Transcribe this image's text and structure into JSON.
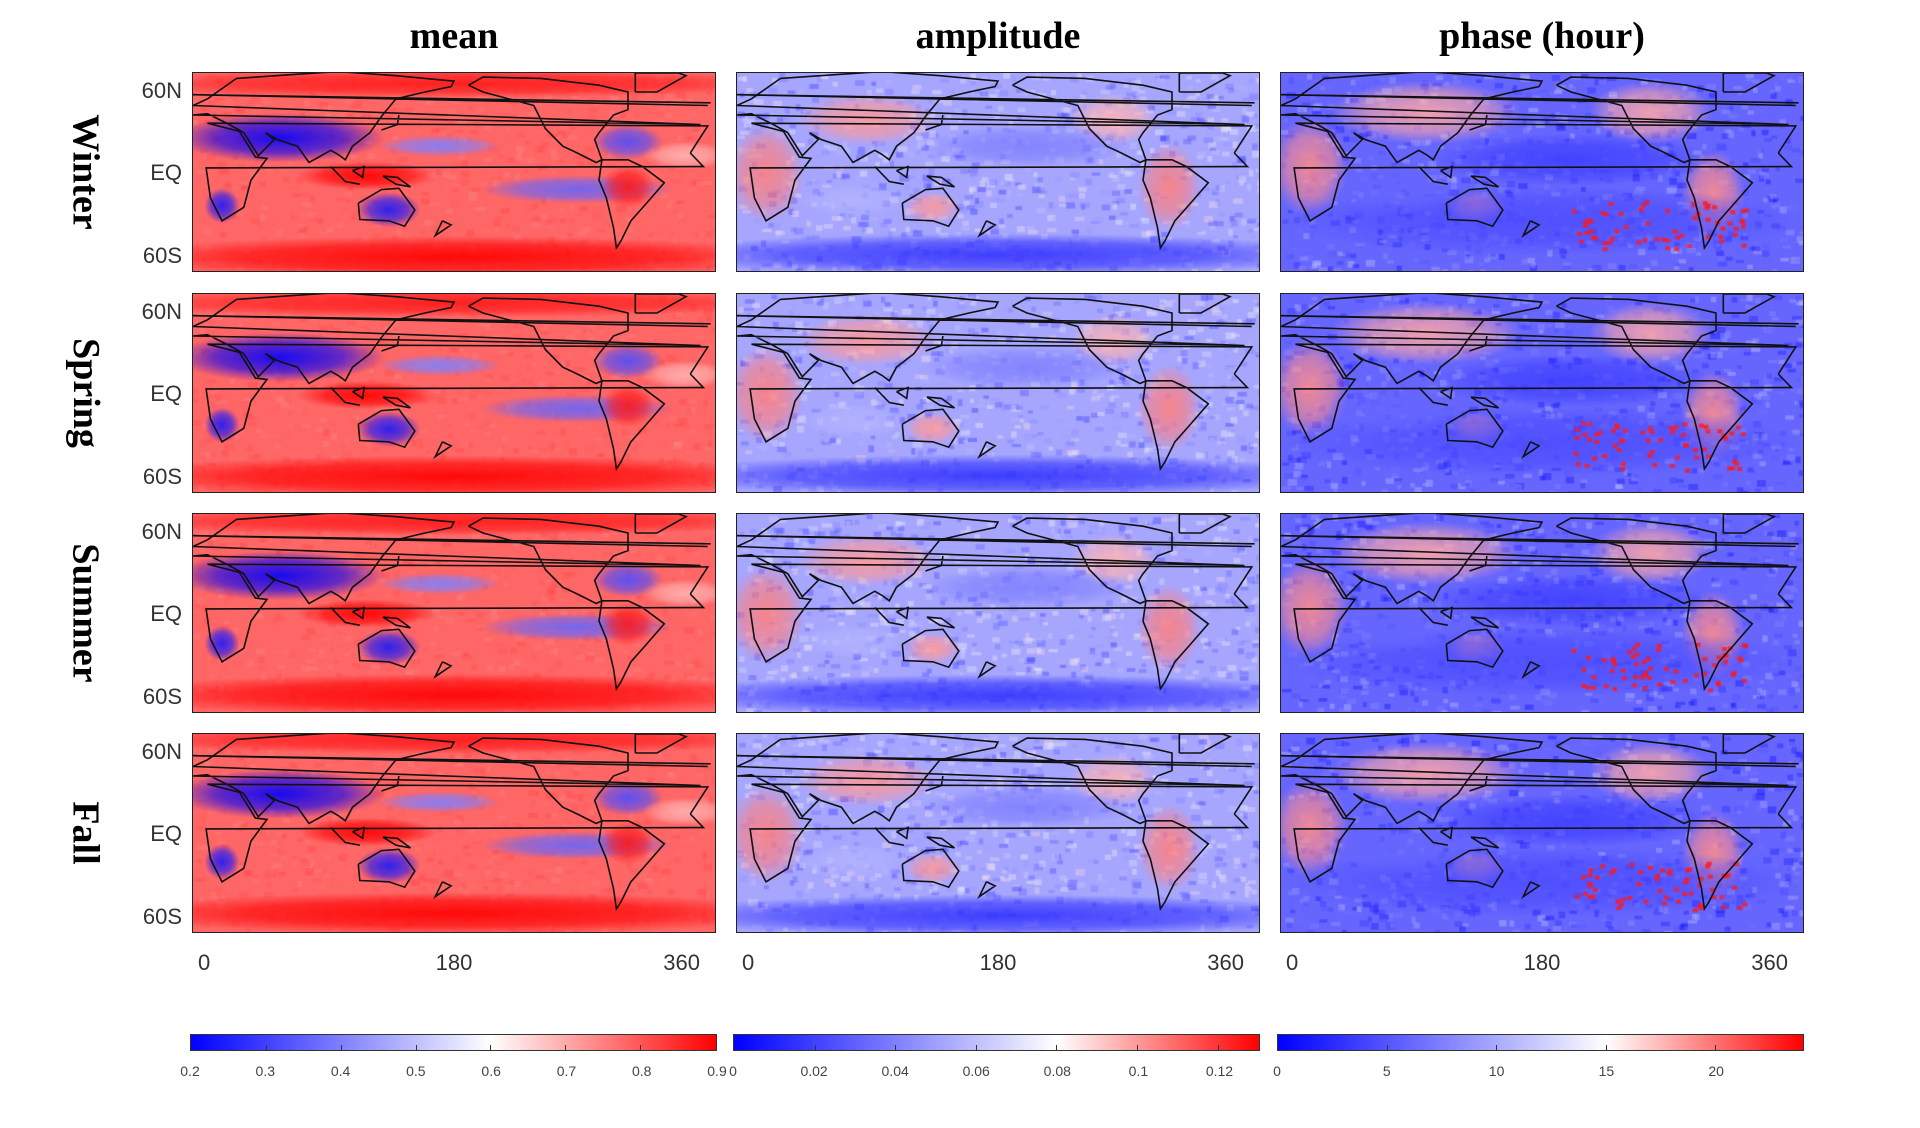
{
  "columns": [
    {
      "title": "mean"
    },
    {
      "title": "amplitude"
    },
    {
      "title": "phase (hour)"
    }
  ],
  "rows": [
    "Winter",
    "Spring",
    "Summer",
    "Fall"
  ],
  "lat_ticks": [
    "60N",
    "EQ",
    "60S"
  ],
  "lon_ticks": [
    "0",
    "180",
    "360"
  ],
  "colorbars": [
    {
      "min": 0.2,
      "max": 0.9,
      "ticks": [
        "0.2",
        "0.3",
        "0.4",
        "0.5",
        "0.6",
        "0.7",
        "0.8",
        "0.9"
      ]
    },
    {
      "min": 0,
      "max": 0.13,
      "ticks": [
        "0",
        "0.02",
        "0.04",
        "0.06",
        "0.08",
        "0.1",
        "0.12"
      ]
    },
    {
      "min": 0,
      "max": 24,
      "ticks": [
        "0",
        "5",
        "10",
        "15",
        "20"
      ]
    }
  ],
  "colormap": {
    "low": "#0000ff",
    "mid": "#ffffff",
    "high": "#ff0000"
  }
}
